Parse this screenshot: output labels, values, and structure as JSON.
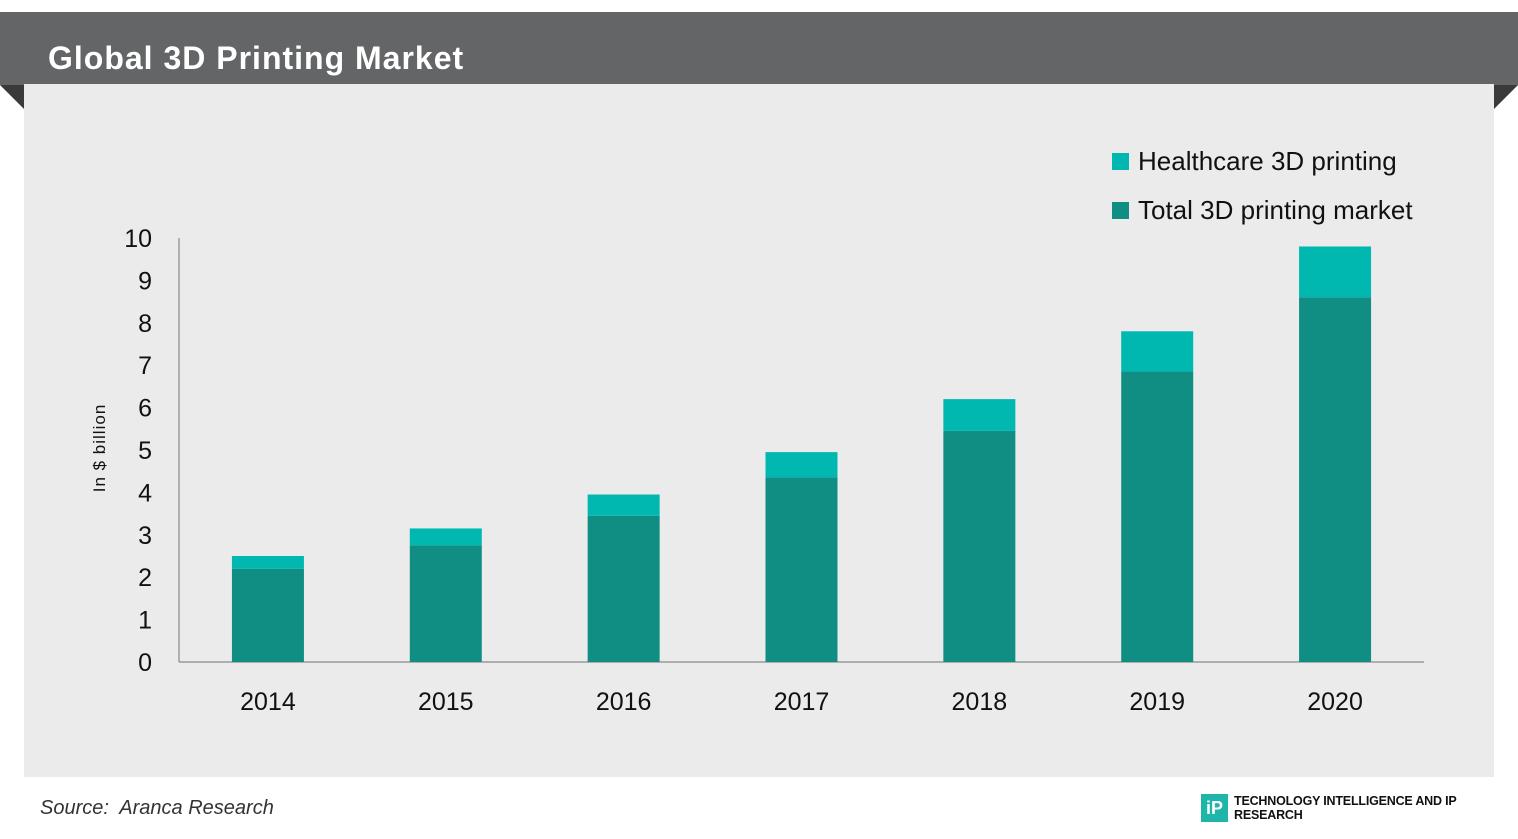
{
  "header": {
    "title": "Global 3D Printing Market"
  },
  "footer": {
    "source": "Source:  Aranca Research",
    "brand_logo_text": "iP",
    "brand_text": "TECHNOLOGY INTELLIGENCE AND IP RESEARCH"
  },
  "chart_data": {
    "type": "bar",
    "stacked": true,
    "title": "Global 3D Printing Market",
    "ylabel": "In $ billion",
    "xlabel": "",
    "ylim": [
      0,
      10
    ],
    "yticks": [
      "0",
      "1",
      "2",
      "3",
      "4",
      "5",
      "6",
      "7",
      "8",
      "9",
      "10"
    ],
    "categories": [
      "2014",
      "2015",
      "2016",
      "2017",
      "2018",
      "2019",
      "2020"
    ],
    "series": [
      {
        "name": "Total 3D printing market",
        "color": "#108e83",
        "values": [
          2.2,
          2.75,
          3.45,
          4.35,
          5.45,
          6.85,
          8.6
        ]
      },
      {
        "name": "Healthcare 3D printing",
        "color": "#00b8b0",
        "values": [
          0.3,
          0.4,
          0.5,
          0.6,
          0.75,
          0.95,
          1.2
        ]
      }
    ],
    "legend": {
      "position": "top-right",
      "order": [
        "Healthcare 3D printing",
        "Total 3D printing market"
      ]
    },
    "grid": false
  }
}
